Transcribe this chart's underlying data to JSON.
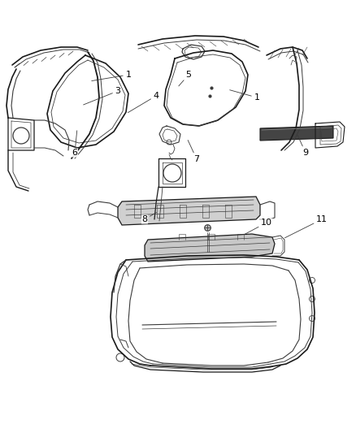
{
  "background_color": "#ffffff",
  "line_color": "#3a3a3a",
  "line_color_light": "#888888",
  "line_color_dark": "#1a1a1a",
  "label_fontsize": 8,
  "fig_width": 4.38,
  "fig_height": 5.33,
  "dpi": 100
}
